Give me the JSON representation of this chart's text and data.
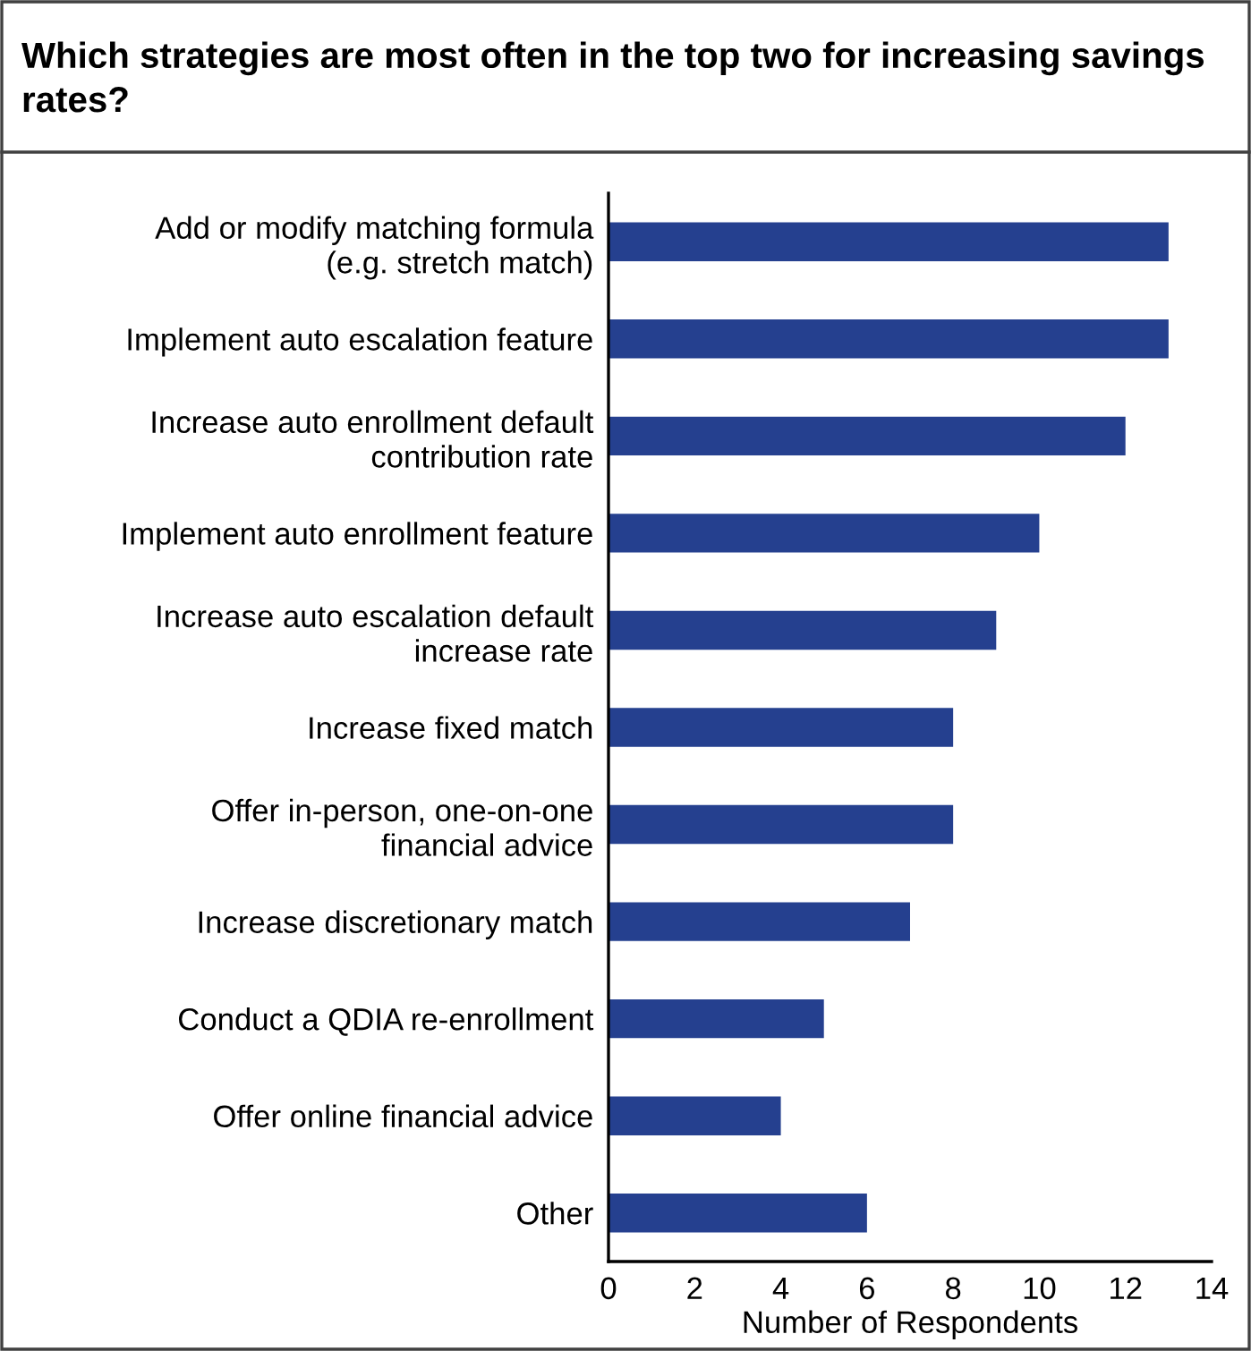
{
  "chart_data": {
    "type": "bar",
    "orientation": "horizontal",
    "title": "Which strategies are most often in the top two for increasing savings rates?",
    "xlabel": "Number of Respondents",
    "categories": [
      "Add or modify matching formula\n(e.g. stretch match)",
      "Implement auto escalation feature",
      "Increase auto enrollment default\ncontribution rate",
      "Implement auto enrollment feature",
      "Increase auto escalation default\nincrease rate",
      "Increase fixed match",
      "Offer in-person, one-on-one\nfinancial advice",
      "Increase discretionary match",
      "Conduct a QDIA re-enrollment",
      "Offer online financial advice",
      "Other"
    ],
    "values": [
      13,
      13,
      12,
      10,
      9,
      8,
      8,
      7,
      5,
      4,
      6
    ],
    "color": "#25408f",
    "xlim": [
      0,
      14
    ],
    "xticks": [
      0,
      2,
      4,
      6,
      8,
      10,
      12,
      14
    ],
    "grid": false,
    "legend": false
  }
}
